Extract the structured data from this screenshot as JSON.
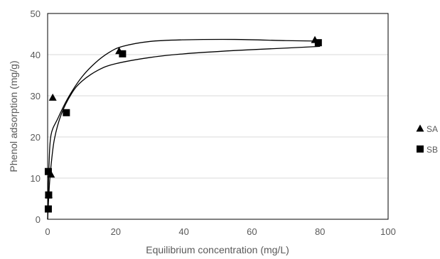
{
  "chart_data": {
    "type": "scatter",
    "title": "",
    "xlabel": "Equilibrium concentration (mg/L)",
    "ylabel": "Phenol adsorption (mg/g)",
    "xlim": [
      0,
      100
    ],
    "ylim": [
      0,
      50
    ],
    "xticks": [
      0,
      20,
      40,
      60,
      80,
      100
    ],
    "yticks": [
      0,
      10,
      20,
      30,
      40,
      50
    ],
    "grid": "horizontal",
    "legend_position": "right",
    "series": [
      {
        "name": "SA",
        "marker": "triangle",
        "points": [
          {
            "x": 0.3,
            "y": 6.0
          },
          {
            "x": 1.0,
            "y": 10.9
          },
          {
            "x": 1.5,
            "y": 29.6
          },
          {
            "x": 21.0,
            "y": 40.9
          },
          {
            "x": 78.5,
            "y": 43.6
          }
        ],
        "fit_curve": [
          {
            "x": 0,
            "y": 0
          },
          {
            "x": 0.4,
            "y": 13.0
          },
          {
            "x": 1.0,
            "y": 20.5
          },
          {
            "x": 3,
            "y": 24.5
          },
          {
            "x": 6,
            "y": 29.5
          },
          {
            "x": 10,
            "y": 34.5
          },
          {
            "x": 14,
            "y": 38.0
          },
          {
            "x": 18,
            "y": 40.5
          },
          {
            "x": 22,
            "y": 42.0
          },
          {
            "x": 30,
            "y": 43.2
          },
          {
            "x": 40,
            "y": 43.6
          },
          {
            "x": 55,
            "y": 43.7
          },
          {
            "x": 70,
            "y": 43.4
          },
          {
            "x": 79,
            "y": 43.3
          }
        ]
      },
      {
        "name": "SB",
        "marker": "square",
        "points": [
          {
            "x": 0.2,
            "y": 2.5
          },
          {
            "x": 0.3,
            "y": 5.9
          },
          {
            "x": 0.2,
            "y": 11.6
          },
          {
            "x": 5.5,
            "y": 25.9
          },
          {
            "x": 22.0,
            "y": 40.2
          },
          {
            "x": 79.5,
            "y": 42.9
          }
        ],
        "fit_curve": [
          {
            "x": 0,
            "y": 0
          },
          {
            "x": 0.5,
            "y": 8.0
          },
          {
            "x": 1.0,
            "y": 13.0
          },
          {
            "x": 2,
            "y": 19.5
          },
          {
            "x": 4,
            "y": 25.5
          },
          {
            "x": 7,
            "y": 30.5
          },
          {
            "x": 10,
            "y": 33.5
          },
          {
            "x": 15,
            "y": 36.3
          },
          {
            "x": 20,
            "y": 37.8
          },
          {
            "x": 30,
            "y": 39.3
          },
          {
            "x": 40,
            "y": 40.2
          },
          {
            "x": 55,
            "y": 41.0
          },
          {
            "x": 70,
            "y": 41.6
          },
          {
            "x": 80,
            "y": 42.0
          }
        ]
      }
    ],
    "colors": {
      "marker": "#000000",
      "curve": "#000000",
      "gridline": "#d9d9d9",
      "axis_text": "#595959"
    }
  }
}
